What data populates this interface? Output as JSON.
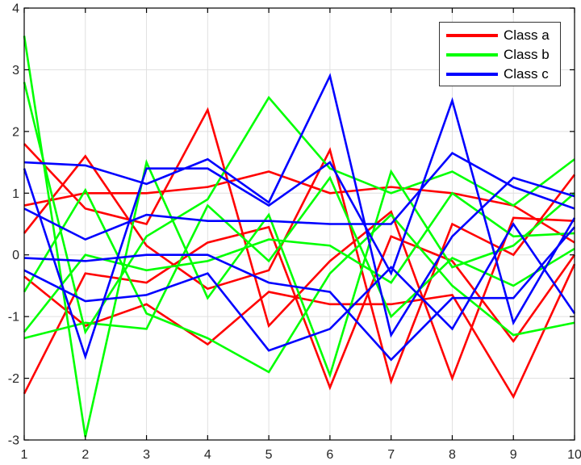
{
  "figure": {
    "background": "#ffffff",
    "axis_color": "#000000",
    "tick_label_color": "#262626",
    "grid_color": "#e0e0e0"
  },
  "legend": {
    "entries": [
      {
        "label": "Class a",
        "color": "#ff0000"
      },
      {
        "label": "Class b",
        "color": "#00ff00"
      },
      {
        "label": "Class c",
        "color": "#0000ff"
      }
    ],
    "position": "northeast"
  },
  "chart_data": {
    "type": "line",
    "title": "",
    "xlabel": "",
    "ylabel": "",
    "x": [
      1,
      2,
      3,
      4,
      5,
      6,
      7,
      8,
      9,
      10
    ],
    "xlim": [
      1,
      10
    ],
    "ylim": [
      -3,
      4
    ],
    "xticks": [
      "1",
      "2",
      "3",
      "4",
      "5",
      "6",
      "7",
      "8",
      "9",
      "10"
    ],
    "xtick_values": [
      1,
      2,
      3,
      4,
      5,
      6,
      7,
      8,
      9,
      10
    ],
    "yticks": [
      "-3",
      "-2",
      "-1",
      "0",
      "1",
      "2",
      "3",
      "4"
    ],
    "ytick_values": [
      -3,
      -2,
      -1,
      0,
      1,
      2,
      3,
      4
    ],
    "grid": true,
    "line_width": 2.6,
    "legend_position": "northeast",
    "series": [
      {
        "name": "Class a",
        "class": "a",
        "color": "#ff0000",
        "values": [
          1.8,
          0.75,
          0.5,
          2.35,
          -1.15,
          -0.1,
          0.7,
          -2.0,
          0.6,
          0.55
        ]
      },
      {
        "name": "Class a",
        "class": "a",
        "color": "#ff0000",
        "values": [
          0.35,
          1.6,
          0.15,
          -0.55,
          -0.25,
          1.7,
          -2.05,
          0.5,
          0.0,
          1.3
        ]
      },
      {
        "name": "Class a",
        "class": "a",
        "color": "#ff0000",
        "values": [
          0.8,
          1.0,
          1.0,
          1.1,
          1.35,
          1.0,
          1.1,
          1.0,
          0.8,
          0.2
        ]
      },
      {
        "name": "Class a",
        "class": "a",
        "color": "#ff0000",
        "values": [
          -2.25,
          -0.3,
          -0.45,
          0.2,
          0.45,
          -2.15,
          0.3,
          -0.1,
          -1.4,
          0.0
        ]
      },
      {
        "name": "Class a",
        "class": "a",
        "color": "#ff0000",
        "values": [
          -0.35,
          -1.15,
          -0.8,
          -1.45,
          -0.6,
          -0.8,
          -0.8,
          -0.65,
          -2.3,
          -0.15
        ]
      },
      {
        "name": "Class b",
        "class": "b",
        "color": "#00ff00",
        "values": [
          3.55,
          -2.95,
          1.5,
          -0.7,
          0.65,
          -1.95,
          1.35,
          -0.2,
          0.15,
          1.0
        ]
      },
      {
        "name": "Class b",
        "class": "b",
        "color": "#00ff00",
        "values": [
          2.8,
          -1.25,
          0.3,
          0.9,
          2.55,
          1.4,
          1.0,
          1.35,
          0.8,
          1.55
        ]
      },
      {
        "name": "Class b",
        "class": "b",
        "color": "#00ff00",
        "values": [
          -0.6,
          1.05,
          -0.95,
          -1.35,
          -1.9,
          -0.3,
          0.65,
          -0.5,
          -1.3,
          -1.1
        ]
      },
      {
        "name": "Class b",
        "class": "b",
        "color": "#00ff00",
        "values": [
          -1.25,
          0.0,
          -0.25,
          -0.1,
          0.25,
          0.15,
          -0.45,
          1.0,
          0.3,
          0.35
        ]
      },
      {
        "name": "Class b",
        "class": "b",
        "color": "#00ff00",
        "values": [
          -1.35,
          -1.1,
          -1.2,
          0.8,
          -0.1,
          1.25,
          -1.0,
          -0.05,
          -0.5,
          0.1
        ]
      },
      {
        "name": "Class c",
        "class": "c",
        "color": "#0000ff",
        "values": [
          1.5,
          1.45,
          1.15,
          1.55,
          0.85,
          2.9,
          -1.3,
          0.3,
          1.25,
          0.95
        ]
      },
      {
        "name": "Class c",
        "class": "c",
        "color": "#0000ff",
        "values": [
          1.4,
          -1.65,
          1.4,
          1.4,
          0.8,
          1.5,
          -0.3,
          2.5,
          -1.1,
          0.6
        ]
      },
      {
        "name": "Class c",
        "class": "c",
        "color": "#0000ff",
        "values": [
          0.75,
          0.25,
          0.65,
          0.55,
          0.55,
          0.5,
          0.5,
          1.65,
          1.1,
          0.75
        ]
      },
      {
        "name": "Class c",
        "class": "c",
        "color": "#0000ff",
        "values": [
          -0.05,
          -0.1,
          0.0,
          0.0,
          -0.45,
          -0.6,
          -1.7,
          -0.7,
          -0.7,
          0.45
        ]
      },
      {
        "name": "Class c",
        "class": "c",
        "color": "#0000ff",
        "values": [
          -0.25,
          -0.75,
          -0.65,
          -0.3,
          -1.55,
          -1.2,
          -0.2,
          -1.2,
          0.5,
          -0.95
        ]
      }
    ]
  }
}
